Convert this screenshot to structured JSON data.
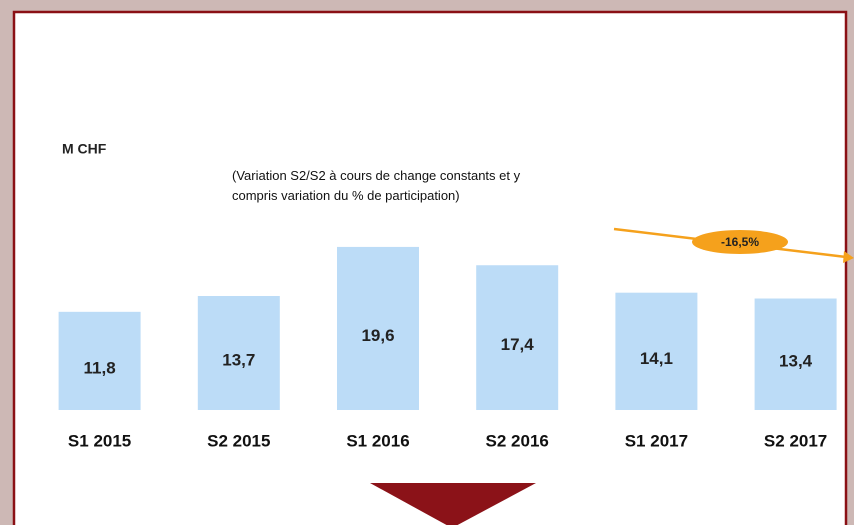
{
  "chart_data": {
    "type": "bar",
    "unit_label": "M CHF",
    "note": "(Variation S2/S2 à cours de change constants et y compris variation du % de participation)",
    "categories": [
      "S1 2015",
      "S2 2015",
      "S1 2016",
      "S2 2016",
      "S1 2017",
      "S2 2017"
    ],
    "values": [
      11.8,
      13.7,
      19.6,
      17.4,
      14.1,
      13.4
    ],
    "value_labels": [
      "11,8",
      "13,7",
      "19,6",
      "17,4",
      "14,1",
      "13,4"
    ],
    "color": "#bcdcf7",
    "annotation": {
      "text": "-16,5%",
      "color": "#f5a11c"
    }
  }
}
